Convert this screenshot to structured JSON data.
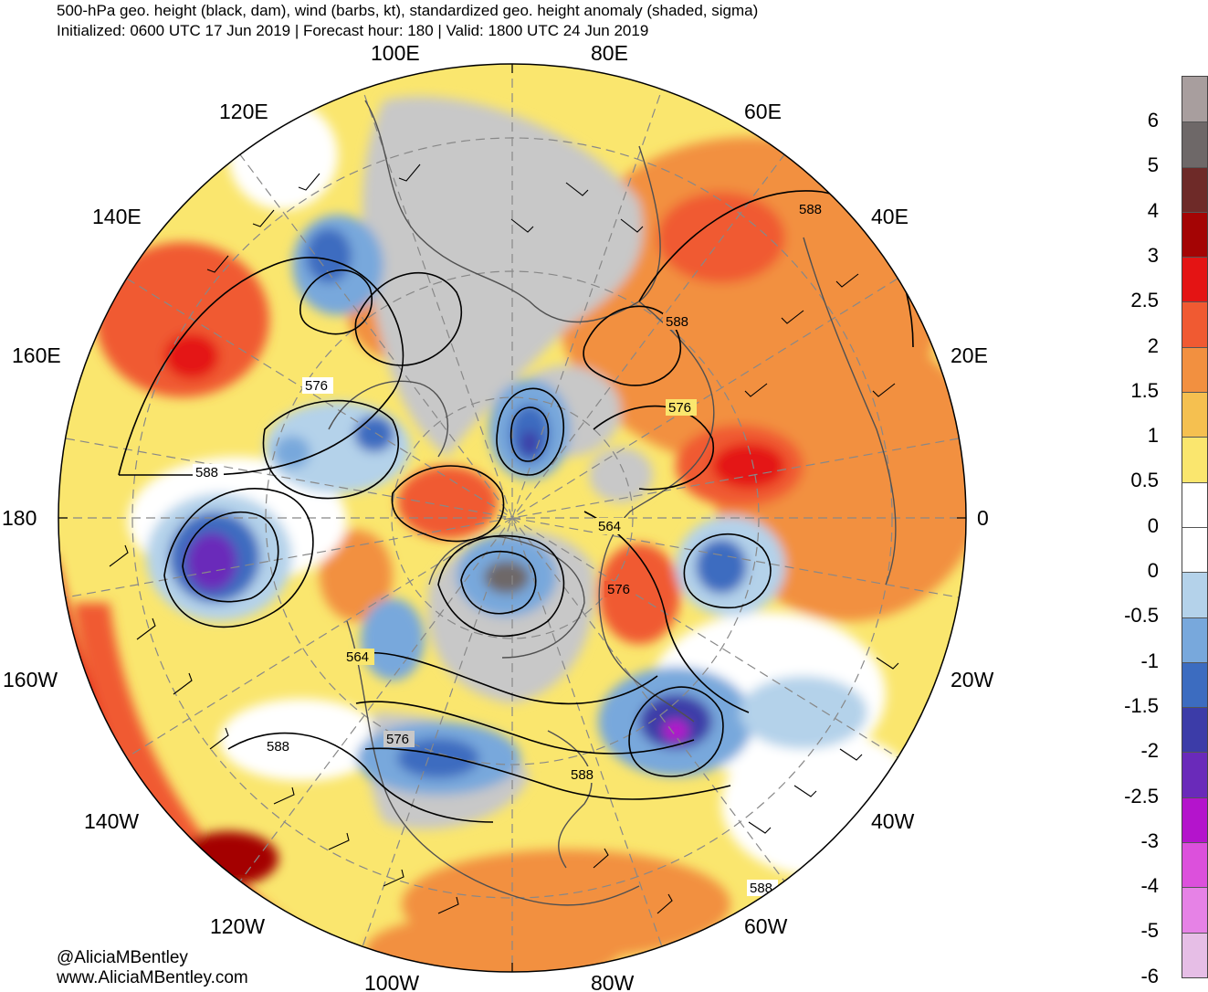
{
  "header": {
    "title": "500-hPa geo. height (black, dam), wind (barbs, kt), standardized geo. height anomaly (shaded, sigma)",
    "subtitle": "Initialized: 0600 UTC 17 Jun 2019 | Forecast hour: 180 | Valid: 1800 UTC 24 Jun 2019"
  },
  "map": {
    "projection": "north polar stereographic",
    "longitude_labels": [
      "100E",
      "80E",
      "120E",
      "60E",
      "140E",
      "40E",
      "160E",
      "20E",
      "180",
      "0",
      "160W",
      "20W",
      "140W",
      "40W",
      "120W",
      "60W",
      "100W",
      "80W"
    ],
    "contour_labels": [
      "588",
      "588",
      "576",
      "576",
      "588",
      "564",
      "576",
      "564",
      "576",
      "588",
      "588",
      "588"
    ],
    "colors": {
      "ocean_land_background": "#ffffff",
      "near_zero_land": "#c8c8c8",
      "coastline": "#505050",
      "contour": "#000000",
      "graticule": "#888888"
    }
  },
  "colorbar": {
    "tick_labels": [
      "6",
      "5",
      "4",
      "3",
      "2.5",
      "2",
      "1.5",
      "1",
      "0.5",
      "0",
      "0",
      "-0.5",
      "-1",
      "-1.5",
      "-2",
      "-2.5",
      "-3",
      "-4",
      "-5",
      "-6"
    ],
    "colors": [
      "#a89e9e",
      "#6e6868",
      "#6e2a28",
      "#a40404",
      "#e41414",
      "#f05a32",
      "#f29040",
      "#f5c050",
      "#fae66e",
      "#ffffff",
      "#ffffff",
      "#b4d2ea",
      "#78a8dc",
      "#3c6cc0",
      "#3c3ca8",
      "#6a2aba",
      "#b414cc",
      "#dc50dc",
      "#e682e6",
      "#e6bee6"
    ]
  },
  "credits": {
    "handle": "@AliciaMBentley",
    "website": "www.AliciaMBentley.com"
  }
}
